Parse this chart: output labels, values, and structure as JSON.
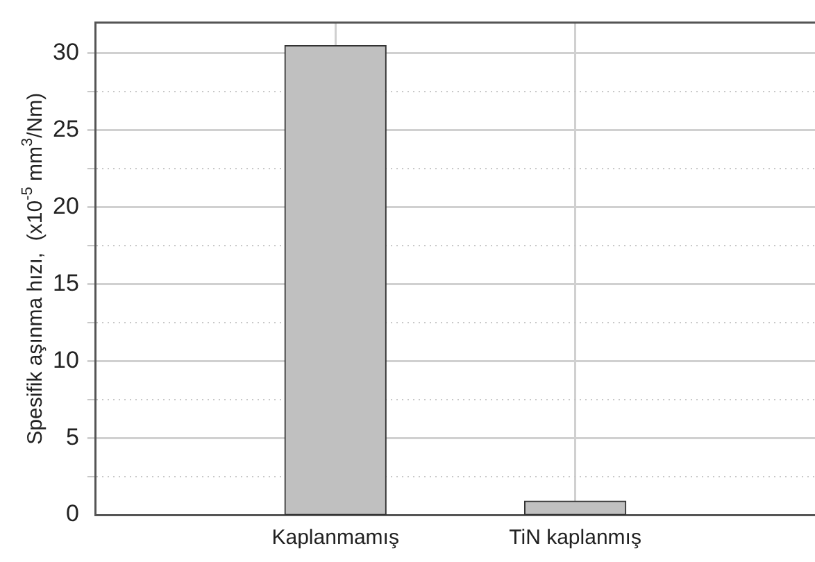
{
  "chart_data": {
    "type": "bar",
    "ylabel": "Spesifik aşınma hızı,  (x10$^{-5}$ mm$^{3}$/Nm)",
    "categories": [
      "Kaplanmamış",
      "TiN kaplanmış"
    ],
    "values": [
      30.5,
      0.9
    ],
    "color": "#c0c0c0",
    "ylim": [
      0,
      32
    ],
    "yticks": [
      0,
      {
        "value": 2.5,
        "label": null
      },
      5,
      {
        "value": 7.5,
        "label": null
      },
      10,
      {
        "value": 12.5,
        "label": null
      },
      15,
      {
        "value": 17.5,
        "label": null
      },
      20,
      {
        "value": 22.5,
        "label": null
      },
      25,
      {
        "value": 27.5,
        "label": null
      },
      30
    ],
    "grid": true,
    "legend": false
  }
}
